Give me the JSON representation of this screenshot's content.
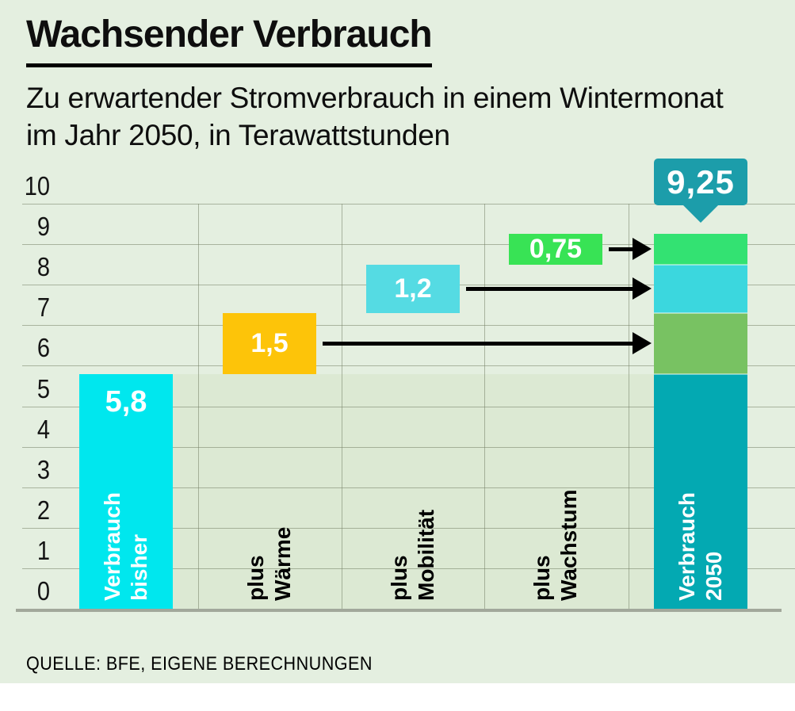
{
  "page": {
    "background": "#ffffff",
    "panel_background": "#e4efe0"
  },
  "header": {
    "title": "Wachsender Verbrauch",
    "subtitle_line1": "Zu erwartender Stromverbrauch in einem Wintermonat",
    "subtitle_line2": "im Jahr 2050, in Terawattstunden"
  },
  "footer": {
    "source": "QUELLE: BFE, EIGENE BERECHNUNGEN"
  },
  "chart_data": {
    "type": "bar",
    "variant": "waterfall-with-stacked-total",
    "title": "Wachsender Verbrauch",
    "subtitle": "Zu erwartender Stromverbrauch in einem Wintermonat im Jahr 2050, in Terawattstunden",
    "unit": "Terawattstunden",
    "ylim": [
      0,
      10
    ],
    "yticks": [
      "0",
      "1",
      "2",
      "3",
      "4",
      "5",
      "6",
      "7",
      "8",
      "9",
      "10"
    ],
    "grid": true,
    "source": "QUELLE: BFE, EIGENE BERECHNUNGEN",
    "carry_band": {
      "range": [
        0,
        5.8
      ],
      "color": "#dce9d3"
    },
    "callout": {
      "label": "9,25",
      "value": 9.25,
      "color": "#1c9daa",
      "text_color": "#ffffff"
    },
    "columns": [
      {
        "id": "verbrauch-bisher",
        "kind": "bar",
        "label_lines": [
          "Verbrauch",
          "bisher"
        ],
        "label_color": "#ffffff",
        "value": 5.8,
        "value_label": "5,8",
        "range": [
          0,
          5.8
        ],
        "color": "#00e7ee"
      },
      {
        "id": "plus-waerme",
        "kind": "float",
        "label_lines": [
          "plus",
          "Wärme"
        ],
        "label_color": "#000000",
        "value": 1.5,
        "value_label": "1,5",
        "range": [
          5.8,
          7.3
        ],
        "color": "#fdc409",
        "arrow": true
      },
      {
        "id": "plus-mobilitaet",
        "kind": "float",
        "label_lines": [
          "plus",
          "Mobilität"
        ],
        "label_color": "#000000",
        "value": 1.2,
        "value_label": "1,2",
        "range": [
          7.3,
          8.5
        ],
        "color": "#55dbe3",
        "arrow": true
      },
      {
        "id": "plus-wachstum",
        "kind": "float",
        "label_lines": [
          "plus",
          "Wachstum"
        ],
        "label_color": "#000000",
        "value": 0.75,
        "value_label": "0,75",
        "range": [
          8.5,
          9.25
        ],
        "color": "#38e355",
        "arrow": true
      },
      {
        "id": "verbrauch-2050",
        "kind": "stacked",
        "label_lines": [
          "Verbrauch",
          "2050"
        ],
        "label_color": "#ffffff",
        "total": 9.25,
        "total_label": "9,25",
        "segments": [
          {
            "name": "Verbrauch bisher",
            "range": [
              0,
              5.8
            ],
            "color": "#03a9b2"
          },
          {
            "name": "plus Wärme",
            "range": [
              5.8,
              7.3
            ],
            "color": "#78c262"
          },
          {
            "name": "plus Mobilität",
            "range": [
              7.3,
              8.5
            ],
            "color": "#3bd7de"
          },
          {
            "name": "plus Wachstum",
            "range": [
              8.5,
              9.25
            ],
            "color": "#33e272"
          }
        ]
      }
    ]
  }
}
